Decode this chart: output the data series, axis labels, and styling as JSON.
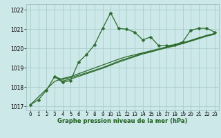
{
  "title": "Graphe pression niveau de la mer (hPa)",
  "bg_color": "#cce8e8",
  "grid_color": "#aacccc",
  "line_color": "#2d6b2d",
  "xlim": [
    -0.5,
    23.5
  ],
  "ylim": [
    1016.8,
    1022.3
  ],
  "xticks": [
    0,
    1,
    2,
    3,
    4,
    5,
    6,
    7,
    8,
    9,
    10,
    11,
    12,
    13,
    14,
    15,
    16,
    17,
    18,
    19,
    20,
    21,
    22,
    23
  ],
  "yticks": [
    1017,
    1018,
    1019,
    1020,
    1021,
    1022
  ],
  "series1_x": [
    0,
    1,
    2,
    3,
    4,
    5,
    6,
    7,
    8,
    9,
    10,
    11,
    12,
    13,
    14,
    15,
    16,
    17,
    18,
    19,
    20,
    21,
    22,
    23
  ],
  "series1_y": [
    1017.1,
    1017.35,
    1017.85,
    1018.55,
    1018.25,
    1018.35,
    1019.3,
    1019.7,
    1020.2,
    1021.05,
    1021.85,
    1021.05,
    1021.0,
    1020.85,
    1020.45,
    1020.6,
    1020.15,
    1020.15,
    1020.2,
    1020.35,
    1020.95,
    1021.05,
    1021.05,
    1020.85
  ],
  "series2_x": [
    0,
    1,
    2,
    3,
    4,
    5,
    6,
    7,
    8,
    9,
    10,
    11,
    12,
    13,
    14,
    15,
    16,
    17,
    18,
    19,
    20,
    21,
    22,
    23
  ],
  "series2_y": [
    1017.1,
    1017.5,
    1017.9,
    1018.3,
    1018.45,
    1018.55,
    1018.7,
    1018.85,
    1019.0,
    1019.15,
    1019.3,
    1019.45,
    1019.58,
    1019.68,
    1019.78,
    1019.88,
    1019.98,
    1020.08,
    1020.18,
    1020.28,
    1020.42,
    1020.56,
    1020.68,
    1020.78
  ],
  "series3_x": [
    3,
    4,
    5,
    6,
    7,
    8,
    9,
    10,
    11,
    12,
    13,
    14,
    15,
    16,
    17,
    18,
    19,
    20,
    21,
    22,
    23
  ],
  "series3_y": [
    1018.55,
    1018.4,
    1018.5,
    1018.62,
    1018.75,
    1018.88,
    1019.02,
    1019.18,
    1019.35,
    1019.48,
    1019.62,
    1019.76,
    1019.86,
    1019.98,
    1020.08,
    1020.18,
    1020.3,
    1020.42,
    1020.55,
    1020.68,
    1020.78
  ],
  "series4_x": [
    3,
    4,
    5,
    6,
    7,
    8,
    9,
    10,
    11,
    12,
    13,
    14,
    15,
    16,
    17,
    18,
    19,
    20,
    21,
    22,
    23
  ],
  "series4_y": [
    1018.55,
    1018.32,
    1018.42,
    1018.56,
    1018.7,
    1018.84,
    1018.98,
    1019.14,
    1019.3,
    1019.44,
    1019.58,
    1019.72,
    1019.82,
    1019.94,
    1020.04,
    1020.14,
    1020.26,
    1020.38,
    1020.51,
    1020.64,
    1020.74
  ]
}
